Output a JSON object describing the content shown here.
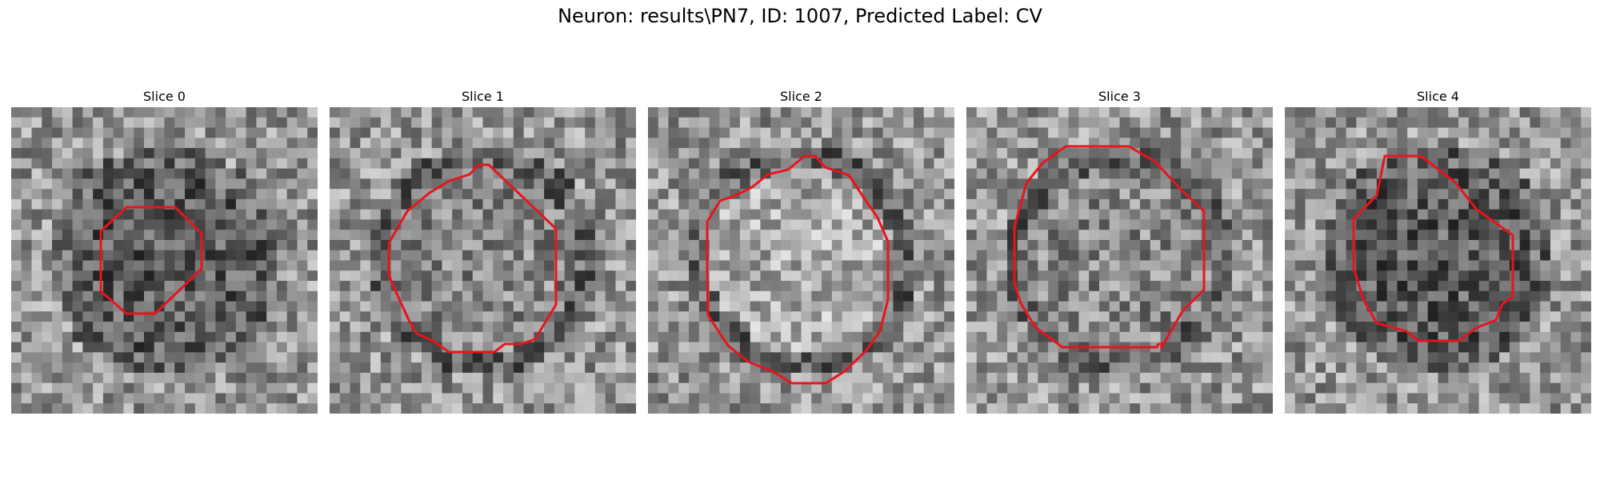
{
  "figure": {
    "title": "Neuron: results\\PN7, ID: 1007, Predicted Label: CV"
  },
  "panels": [
    {
      "title": "Slice 0",
      "seed": 11,
      "center_tone": "dark"
    },
    {
      "title": "Slice 1",
      "seed": 23,
      "center_tone": "mid"
    },
    {
      "title": "Slice 2",
      "seed": 37,
      "center_tone": "light"
    },
    {
      "title": "Slice 3",
      "seed": 41,
      "center_tone": "mid"
    },
    {
      "title": "Slice 4",
      "seed": 53,
      "center_tone": "dark"
    }
  ],
  "colors": {
    "contour": "#e8141c",
    "background": "#ffffff"
  },
  "image": {
    "grid_size": 30,
    "colormap": "gray"
  }
}
